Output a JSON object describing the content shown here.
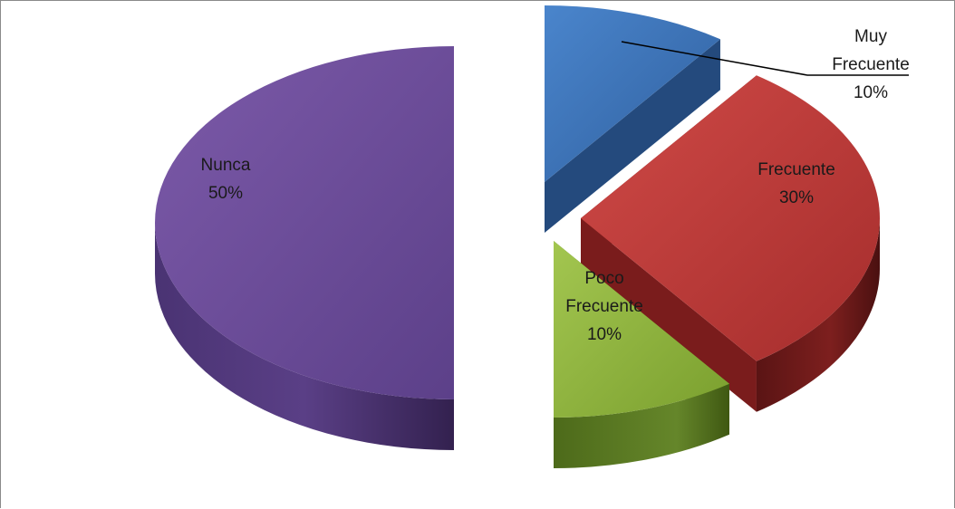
{
  "chart_data": {
    "type": "pie",
    "style": "3d-exploded",
    "categories": [
      "Muy Frecuente",
      "Frecuente",
      "Poco Frecuente",
      "Nunca"
    ],
    "values": [
      10,
      30,
      10,
      50
    ],
    "labels": [
      {
        "lines": [
          "Muy",
          "Frecuente",
          "10%"
        ]
      },
      {
        "lines": [
          "Frecuente",
          "30%"
        ]
      },
      {
        "lines": [
          "Poco",
          "Frecuente",
          "10%"
        ]
      },
      {
        "lines": [
          "Nunca",
          "50%"
        ]
      }
    ],
    "colors": [
      "#3a6fb3",
      "#c0393a",
      "#8db33a",
      "#6b4e9b"
    ],
    "side_colors": [
      "#244a7d",
      "#7a1c1c",
      "#58771d",
      "#3f2a63"
    ],
    "legend": "none",
    "title": ""
  }
}
